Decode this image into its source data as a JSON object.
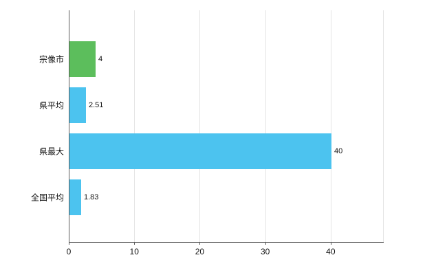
{
  "chart_data": {
    "type": "bar",
    "orientation": "horizontal",
    "title": "",
    "categories": [
      "宗像市",
      "県平均",
      "県最大",
      "全国平均"
    ],
    "values": [
      4,
      2.51,
      40,
      1.83
    ],
    "value_labels": [
      "4",
      "2.51",
      "40",
      "1.83"
    ],
    "series": [
      {
        "name": "value",
        "values": [
          4,
          2.51,
          40,
          1.83
        ]
      }
    ],
    "bar_colors": [
      "#5CBE5C",
      "#4CC3EF",
      "#4CC3EF",
      "#4CC3EF"
    ],
    "xlim": [
      0,
      48
    ],
    "x_ticks": [
      0,
      10,
      20,
      30,
      40
    ],
    "xlabel": "",
    "ylabel": "",
    "grid": true,
    "legend_position": "none",
    "colors": {
      "axis": "#595959",
      "gridline": "#e4e4e4",
      "text": "#111111",
      "background": "#ffffff",
      "highlight_bar": "#5CBE5C",
      "default_bar": "#4CC3EF"
    }
  }
}
